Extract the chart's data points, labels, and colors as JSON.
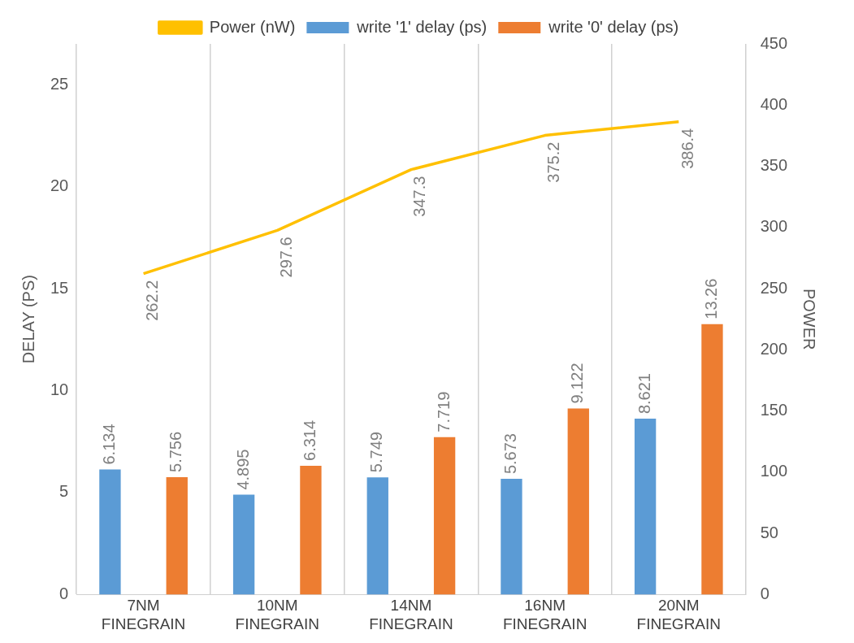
{
  "chart_data": {
    "type": "bar",
    "categories": [
      "7NM FINEGRAIN",
      "10NM FINEGRAIN",
      "14NM FINEGRAIN",
      "16NM FINEGRAIN",
      "20NM FINEGRAIN"
    ],
    "ylabel": "DELAY (PS)",
    "y2label": "POWER",
    "series": [
      {
        "name": "write '1' delay (ps)",
        "color": "#5b9bd5",
        "values": [
          6.134,
          4.895,
          5.749,
          5.673,
          8.621
        ]
      },
      {
        "name": "write '0' delay (ps)",
        "color": "#ed7d31",
        "values": [
          5.756,
          6.314,
          7.719,
          9.122,
          13.26
        ]
      },
      {
        "name": "Power (nW)",
        "type": "line",
        "axis": "y2",
        "color": "#ffc000",
        "values": [
          262.2,
          297.6,
          347.3,
          375.2,
          386.4
        ]
      }
    ],
    "ylim": [
      0,
      27
    ],
    "yticks": [
      0,
      5,
      10,
      15,
      20,
      25
    ],
    "y2lim": [
      0,
      450
    ],
    "y2ticks": [
      0,
      50,
      100,
      150,
      200,
      250,
      300,
      350,
      400,
      450
    ],
    "grid": "x",
    "legend": "top",
    "marker": "none",
    "line_style": "solid",
    "data_labels": true
  }
}
